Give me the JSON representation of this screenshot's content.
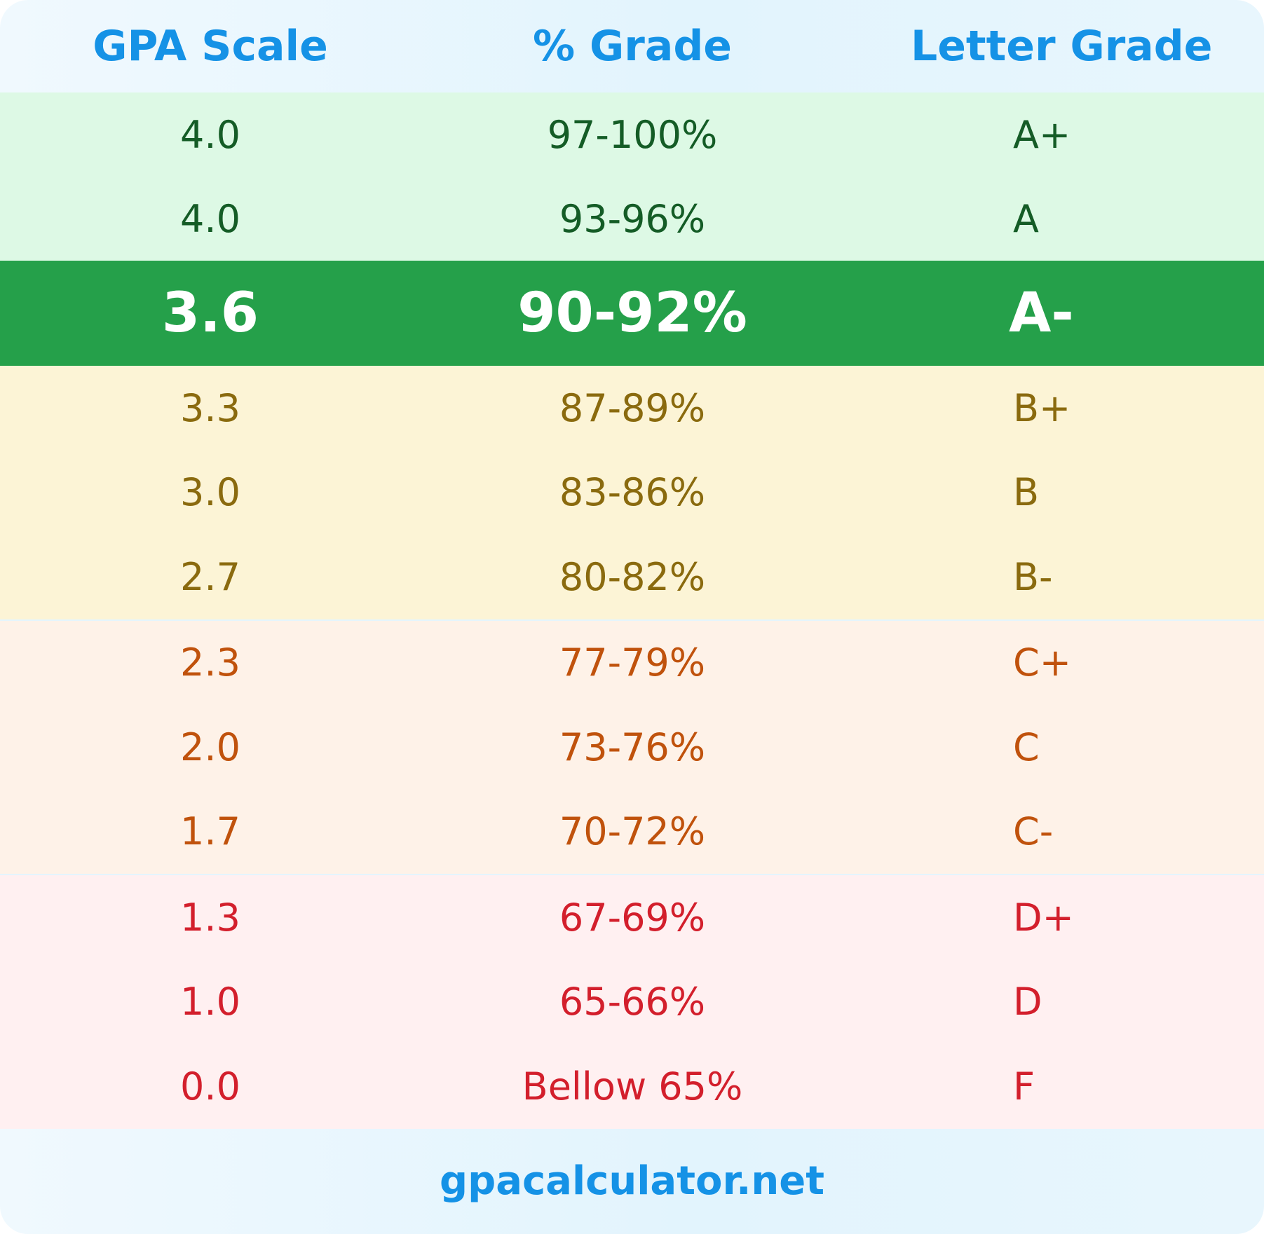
{
  "header": {
    "gpa_label": "GPA Scale",
    "percent_label": "% Grade",
    "letter_label": "Letter Grade"
  },
  "sections": {
    "green": [
      {
        "gpa": "4.0",
        "percent": "97-100%",
        "letter": "A+"
      },
      {
        "gpa": "4.0",
        "percent": "93-96%",
        "letter": "A"
      }
    ],
    "highlight": {
      "gpa": "3.6",
      "percent": "90-92%",
      "letter": "A-"
    },
    "yellow": [
      {
        "gpa": "3.3",
        "percent": "87-89%",
        "letter": "B+"
      },
      {
        "gpa": "3.0",
        "percent": "83-86%",
        "letter": "B"
      },
      {
        "gpa": "2.7",
        "percent": "80-82%",
        "letter": "B-"
      }
    ],
    "orange": [
      {
        "gpa": "2.3",
        "percent": "77-79%",
        "letter": "C+"
      },
      {
        "gpa": "2.0",
        "percent": "73-76%",
        "letter": "C"
      },
      {
        "gpa": "1.7",
        "percent": "70-72%",
        "letter": "C-"
      }
    ],
    "red": [
      {
        "gpa": "1.3",
        "percent": "67-69%",
        "letter": "D+"
      },
      {
        "gpa": "1.0",
        "percent": "65-66%",
        "letter": "D"
      },
      {
        "gpa": "0.0",
        "percent": "Bellow 65%",
        "letter": "F"
      }
    ]
  },
  "footer": {
    "site": "gpacalculator.net"
  },
  "colors": {
    "header_text": "#1592e6",
    "highlight_bg": "#25a04a",
    "green_bg": "#ddf9e5",
    "green_text": "#145c26",
    "yellow_bg": "#fcf4d6",
    "yellow_text": "#8a6a0e",
    "orange_bg": "#fef2e8",
    "orange_text": "#c0520c",
    "red_bg": "#fff0f1",
    "red_text": "#d31f2c"
  }
}
